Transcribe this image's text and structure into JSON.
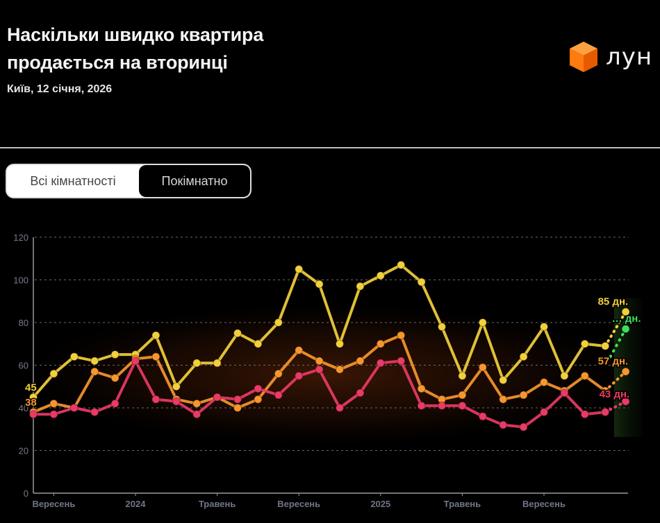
{
  "header": {
    "title_line1": "Наскільки швидко квартира",
    "title_line2": "продається на вторинці",
    "subtitle": "Київ, 12 січня, 2026",
    "logo_text": "лун",
    "logo_color": "#ff6a00"
  },
  "toggle": {
    "options": [
      {
        "label": "Всі кімнатності",
        "active": false
      },
      {
        "label": "Покімнатно",
        "active": true
      }
    ]
  },
  "chart_data": {
    "type": "line",
    "title": "Наскільки швидко квартира продається на вторинці",
    "subtitle": "Київ, 12 січня, 2026",
    "xlabel": "",
    "ylabel": "",
    "ylim": [
      0,
      120
    ],
    "yticks": [
      0,
      20,
      40,
      60,
      80,
      100,
      120
    ],
    "grid": true,
    "x": [
      "2023-08",
      "2023-09",
      "2023-10",
      "2023-11",
      "2023-12",
      "2024-01",
      "2024-02",
      "2024-03",
      "2024-04",
      "2024-05",
      "2024-06",
      "2024-07",
      "2024-08",
      "2024-09",
      "2024-10",
      "2024-11",
      "2024-12",
      "2025-01",
      "2025-02",
      "2025-03",
      "2025-04",
      "2025-05",
      "2025-06",
      "2025-07",
      "2025-08",
      "2025-09",
      "2025-10",
      "2025-11",
      "2025-12",
      "2026-01"
    ],
    "xtick_labels": [
      {
        "label": "Вересень",
        "index": 1
      },
      {
        "label": "2024",
        "index": 5
      },
      {
        "label": "Травень",
        "index": 9
      },
      {
        "label": "Вересень",
        "index": 13
      },
      {
        "label": "2025",
        "index": 17
      },
      {
        "label": "Травень",
        "index": 21
      },
      {
        "label": "Вересень",
        "index": 25
      }
    ],
    "series": [
      {
        "name": "yellow",
        "color": "#f2d03b",
        "values": [
          45,
          56,
          64,
          62,
          65,
          65,
          74,
          50,
          61,
          61,
          75,
          70,
          80,
          105,
          98,
          70,
          97,
          102,
          107,
          99,
          78,
          55,
          80,
          53,
          64,
          78,
          55,
          70,
          69,
          85
        ],
        "start_label": "45",
        "end_label": "85 дн."
      },
      {
        "name": "orange",
        "color": "#f7962e",
        "values": [
          38,
          42,
          40,
          57,
          54,
          63,
          64,
          44,
          42,
          45,
          40,
          44,
          56,
          67,
          62,
          58,
          62,
          70,
          74,
          49,
          44,
          46,
          59,
          44,
          46,
          52,
          48,
          55,
          48,
          57
        ],
        "start_label": "38",
        "end_label": "57 дн."
      },
      {
        "name": "red",
        "color": "#ea3a66",
        "values": [
          37,
          37,
          40,
          38,
          42,
          62,
          44,
          43,
          37,
          45,
          44,
          49,
          46,
          55,
          58,
          40,
          47,
          61,
          62,
          41,
          41,
          41,
          36,
          32,
          31,
          38,
          47,
          37,
          38,
          43
        ],
        "end_label": "43 дн."
      },
      {
        "name": "green",
        "color": "#3ee05a",
        "values": [
          null,
          null,
          null,
          null,
          null,
          null,
          null,
          null,
          null,
          null,
          null,
          null,
          null,
          null,
          null,
          null,
          null,
          null,
          null,
          null,
          null,
          null,
          null,
          null,
          null,
          null,
          null,
          null,
          null,
          77
        ],
        "end_label": "… дн."
      }
    ],
    "forecast_from_index": 28
  }
}
